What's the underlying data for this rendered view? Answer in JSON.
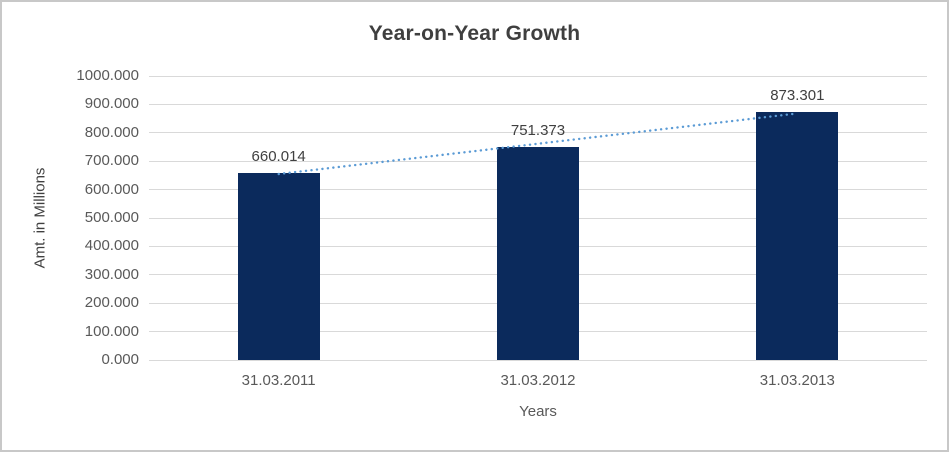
{
  "chart_data": {
    "type": "bar",
    "title": "Year-on-Year Growth",
    "xlabel": "Years",
    "ylabel": "Amt. in Millions",
    "categories": [
      "31.03.2011",
      "31.03.2012",
      "31.03.2013"
    ],
    "values": [
      660.014,
      751.373,
      873.301
    ],
    "data_labels": [
      "660.014",
      "751.373",
      "873.301"
    ],
    "ylim": [
      0,
      1000
    ],
    "ytick_step": 100,
    "ytick_labels": [
      "0.000",
      "100.000",
      "200.000",
      "300.000",
      "400.000",
      "500.000",
      "600.000",
      "700.000",
      "800.000",
      "900.000",
      "1000.000"
    ],
    "grid": "horizontal",
    "legend": "none",
    "bar_color": "#0B2A5C",
    "gridline_color": "#D9D9D9",
    "trendline": {
      "type": "linear",
      "style": "dotted",
      "color": "#5B9BD5",
      "start_value": 654.9,
      "end_value": 868.2
    }
  }
}
